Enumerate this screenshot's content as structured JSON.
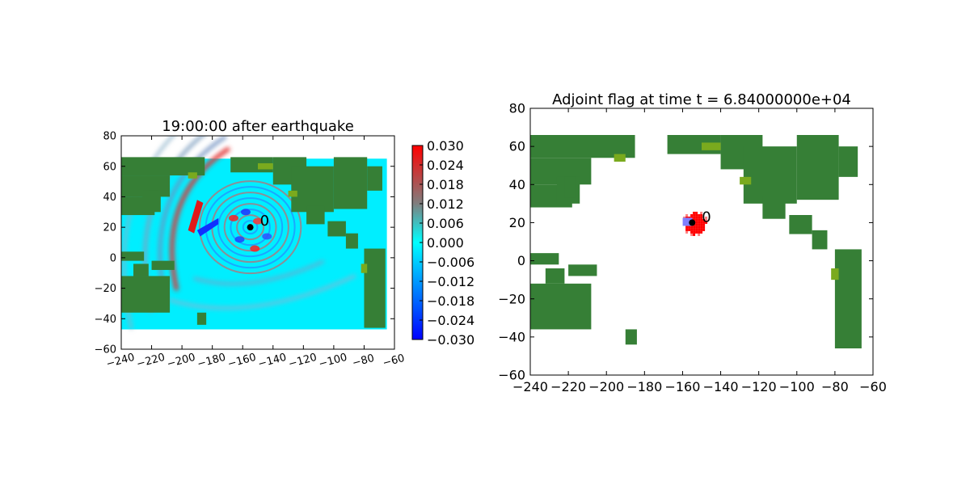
{
  "figure": {
    "colors": {
      "ocean_left": "#00eeff",
      "land": "#367f36",
      "land_light": "#7aaa1e",
      "shallow": "#3bbfcf",
      "flag": "#ff0000",
      "flag_light": "#ff7f7f",
      "flag_blue": "#7f7fff",
      "source": "#000000"
    }
  },
  "chart_data": [
    {
      "type": "heatmap",
      "title": "19:00:00 after earthquake",
      "xlim": [
        -240,
        -60
      ],
      "ylim": [
        -60,
        80
      ],
      "data_extent": {
        "x": [
          -240,
          -65
        ],
        "y": [
          -47,
          65
        ]
      },
      "xticks": [
        "−240",
        "−220",
        "−200",
        "−180",
        "−160",
        "−140",
        "−120",
        "−100",
        "−80",
        "−60"
      ],
      "yticks": [
        "−60",
        "−40",
        "−20",
        "0",
        "20",
        "40",
        "60",
        "80"
      ],
      "source": {
        "x": -155,
        "y": 20,
        "label": "0"
      },
      "colorbar": {
        "range": [
          -0.03,
          0.03
        ],
        "colormap": [
          "#0000ff",
          "#00ffff",
          "#ff0000"
        ],
        "ticks": [
          "0.030",
          "0.024",
          "0.018",
          "0.012",
          "0.006",
          "0.000",
          "−0.006",
          "−0.012",
          "−0.018",
          "−0.024",
          "−0.030"
        ]
      }
    },
    {
      "type": "heatmap",
      "title": "Adjoint flag at time t = 6.84000000e+04",
      "xlim": [
        -240,
        -60
      ],
      "ylim": [
        -60,
        80
      ],
      "data_extent": {
        "x": [
          -240,
          -65
        ],
        "y": [
          -47,
          65
        ]
      },
      "xticks": [
        "−240",
        "−220",
        "−200",
        "−180",
        "−160",
        "−140",
        "−120",
        "−100",
        "−80",
        "−60"
      ],
      "yticks": [
        "−60",
        "−40",
        "−20",
        "0",
        "20",
        "40",
        "60",
        "80"
      ],
      "source": {
        "x": -155,
        "y": 20,
        "label": "0"
      },
      "flag_region": {
        "center": [
          -154,
          20
        ],
        "radius_deg": 7
      }
    }
  ]
}
